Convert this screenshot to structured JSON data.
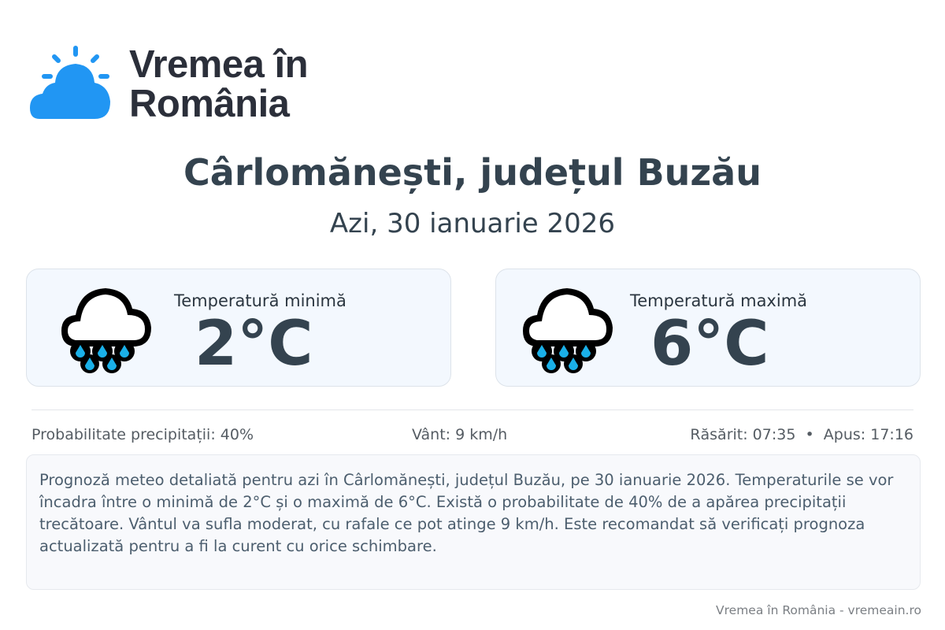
{
  "brand": {
    "name_line1": "Vremea în",
    "name_line2": "România",
    "color": "#2196f3"
  },
  "location_title": "Cârlomănești, județul Buzău",
  "date": "Azi, 30 ianuarie 2026",
  "cards": [
    {
      "label": "Temperatură minimă",
      "value": "2°C",
      "icon": "rain-cloud-icon"
    },
    {
      "label": "Temperatură maximă",
      "value": "6°C",
      "icon": "rain-cloud-icon"
    }
  ],
  "stats": {
    "precip": "Probabilitate precipitații: 40%",
    "wind": "Vânt: 9 km/h",
    "sun": "Răsărit: 07:35  •  Apus: 17:16"
  },
  "description": "Prognoză meteo detaliată pentru azi în Cârlomănești, județul Buzău, pe 30 ianuarie 2026. Temperaturile se vor încadra între o minimă de 2°C și o maximă de 6°C. Există o probabilitate de 40% de a apărea precipitații trecătoare. Vântul va sufla moderat, cu rafale ce pot atinge 9 km/h. Este recomandat să verificați prognoza actualizată pentru a fi la curent cu orice schimbare.",
  "footer": "Vremea în România - vremeain.ro"
}
